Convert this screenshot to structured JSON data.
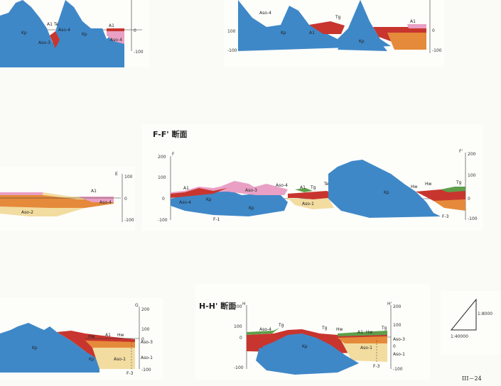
{
  "panels": {
    "top_left": {
      "labels": [
        "Kp",
        "Kp",
        "Aso-4",
        "Aso-3",
        "A1",
        "Te",
        "A1",
        "Aso-4"
      ],
      "ticks": [
        "0",
        "-100"
      ]
    },
    "top_right": {
      "labels": [
        "Aso-4",
        "Kp",
        "A1",
        "Tg",
        "Kp",
        "A1"
      ],
      "ticks": [
        "100",
        "0",
        "-100",
        "-100"
      ]
    },
    "mid_left": {
      "labels": [
        "A1",
        "Aso-4",
        "Aso-2",
        "E"
      ],
      "ticks": [
        "100",
        "0",
        "-100"
      ]
    },
    "mid_center": {
      "title": "F-F' 断面",
      "left_label": "F",
      "right_label": "F'",
      "labels": [
        "A1",
        "Aso-4",
        "Kp",
        "Aso-3",
        "Kp",
        "Aso-4",
        "A1",
        "Tg",
        "Te",
        "Aso-1",
        "Kp",
        "Hw",
        "Hw",
        "Tg",
        "F-1",
        "F-3"
      ],
      "ticks_left": [
        "200",
        "100",
        "0",
        "-100"
      ],
      "ticks_right": [
        "200",
        "100",
        "0",
        "-100"
      ]
    },
    "bottom_left": {
      "labels": [
        "Kp",
        "Kp",
        "Hw",
        "A1",
        "Hw",
        "Aso-3",
        "Aso-1",
        "Aso-1",
        "F-3",
        "G"
      ],
      "ticks": [
        "200",
        "100",
        "0",
        "-100"
      ]
    },
    "bottom_center": {
      "title": "H-H' 断面",
      "left_label": "H",
      "right_label": "H'",
      "labels": [
        "Aso-4",
        "Tg",
        "Kp",
        "Tg",
        "Hw",
        "A1",
        "Hw",
        "Tg",
        "Aso-3",
        "Aso-1",
        "Aso-1",
        "F-3"
      ],
      "ticks_left": [
        "200",
        "100",
        "0",
        "-100"
      ],
      "ticks_right": [
        "200",
        "100",
        "0",
        "-100"
      ]
    },
    "scale": {
      "vertical": "1:8000",
      "horizontal": "1:40000"
    },
    "page_number": "III－24"
  },
  "colors": {
    "granite_blue": "#3f88c8",
    "red_layer": "#c8352e",
    "orange_layer": "#e58a3a",
    "yellow_layer": "#f2dca0",
    "pink_layer": "#e9a0c4",
    "green_layer": "#5f9e4a",
    "paper": "#fdfdfa"
  }
}
